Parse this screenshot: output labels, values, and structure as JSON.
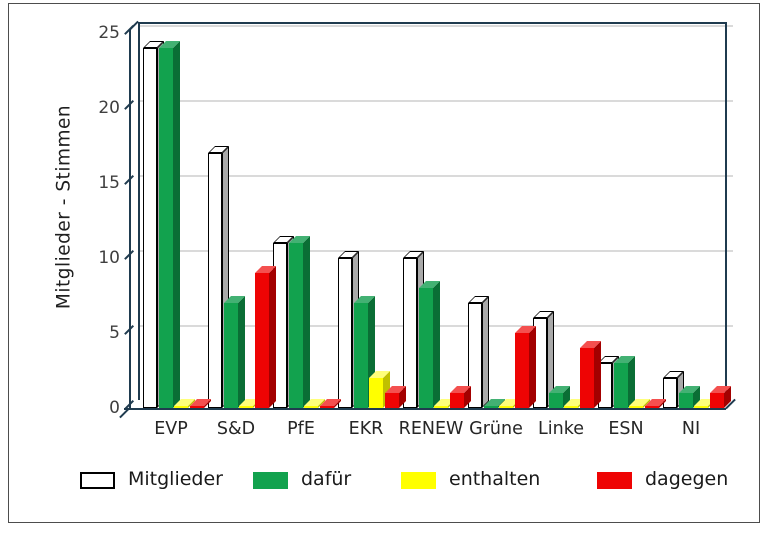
{
  "chart_data": {
    "type": "bar",
    "style": "3d-clustered",
    "title": "",
    "ylabel": "Mitglieder - Stimmen",
    "xlabel": "",
    "categories": [
      "EVP",
      "S&D",
      "PfE",
      "EKR",
      "RENEW",
      "Grüne",
      "Linke",
      "ESN",
      "NI"
    ],
    "series": [
      {
        "name": "Mitglieder",
        "color": "#ffffff",
        "color_top": "#ffffff",
        "color_side": "#a9a9a9",
        "border": "#000000",
        "values": [
          24,
          17,
          11,
          10,
          10,
          7,
          6,
          3,
          2
        ]
      },
      {
        "name": "dafür",
        "color": "#12a24e",
        "color_top": "#43b173",
        "color_side": "#0a6e35",
        "border": "",
        "values": [
          24,
          7,
          11,
          7,
          8,
          0,
          1,
          3,
          1
        ]
      },
      {
        "name": "enthalten",
        "color": "#ffff00",
        "color_top": "#ffff7a",
        "color_side": "#c0c000",
        "border": "",
        "values": [
          0,
          0,
          0,
          2,
          0,
          0,
          0,
          0,
          0
        ]
      },
      {
        "name": "dagegen",
        "color": "#ee0404",
        "color_top": "#f4504f",
        "color_side": "#a30000",
        "border": "",
        "values": [
          0,
          9,
          0,
          1,
          1,
          5,
          4,
          0,
          1
        ]
      }
    ],
    "ylim": [
      0,
      25
    ],
    "yticks": [
      0,
      5,
      10,
      15,
      20,
      25
    ],
    "grid": true,
    "gridline_color": "#dadada",
    "wall_color": "#1f3b4f",
    "legend_position": "bottom"
  }
}
